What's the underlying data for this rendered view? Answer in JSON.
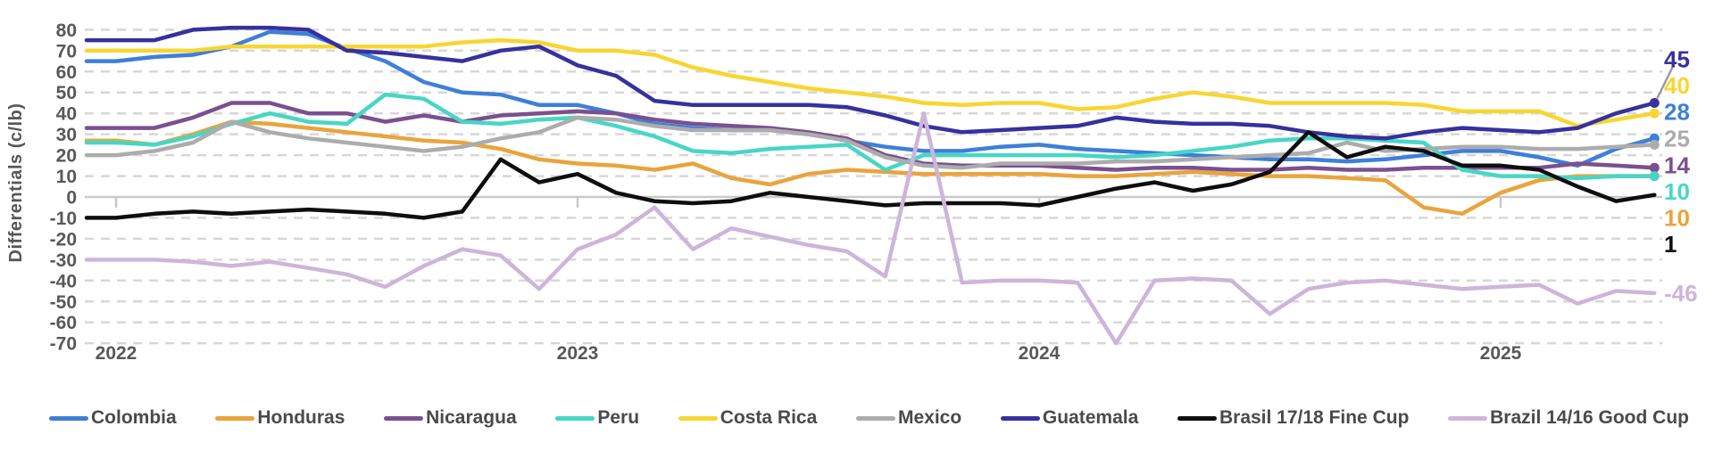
{
  "chart_data": {
    "type": "line",
    "title": "",
    "ylabel": "Differentials (c/lb)",
    "y_ticks": [
      80,
      70,
      60,
      50,
      40,
      30,
      20,
      10,
      0,
      -10,
      -20,
      -30,
      -40,
      -50,
      -60,
      -70
    ],
    "ylim": [
      -75,
      85
    ],
    "x_tick_labels": [
      "2022",
      "2023",
      "2024",
      "2025"
    ],
    "x_frequency": "monthly",
    "x_start": "2022-01",
    "x_end": "2025-05",
    "grid": "horizontal dashed, solid line at 0",
    "legend_position": "bottom",
    "series": [
      {
        "name": "Colombia",
        "color": "#3E7FD9",
        "end_label": "28",
        "values": [
          65,
          67,
          68,
          72,
          79,
          78,
          71,
          65,
          55,
          50,
          49,
          44,
          44,
          40,
          35,
          33,
          32,
          32,
          30,
          27,
          24,
          22,
          22,
          24,
          25,
          23,
          22,
          21,
          20,
          19,
          18,
          18,
          17,
          18,
          20,
          22,
          22,
          19,
          15,
          23,
          28
        ]
      },
      {
        "name": "Honduras",
        "color": "#E9A43C",
        "end_label": "10",
        "values": [
          27,
          25,
          30,
          36,
          35,
          33,
          31,
          29,
          27,
          26,
          23,
          18,
          16,
          15,
          13,
          16,
          9,
          6,
          11,
          13,
          12,
          11,
          11,
          11,
          11,
          10,
          10,
          11,
          12,
          11,
          10,
          10,
          9,
          8,
          -5,
          -8,
          2,
          8,
          10,
          10,
          10
        ]
      },
      {
        "name": "Nicaragua",
        "color": "#7B4F90",
        "end_label": "14",
        "values": [
          33,
          33,
          38,
          45,
          45,
          40,
          40,
          36,
          39,
          36,
          39,
          40,
          41,
          40,
          37,
          35,
          34,
          33,
          31,
          28,
          20,
          16,
          15,
          15,
          15,
          14,
          13,
          14,
          14,
          13,
          13,
          14,
          13,
          13,
          14,
          14,
          14,
          14,
          16,
          15,
          14
        ]
      },
      {
        "name": "Peru",
        "color": "#47D6C6",
        "end_label": "10",
        "values": [
          26,
          25,
          29,
          35,
          40,
          36,
          35,
          49,
          47,
          36,
          35,
          37,
          38,
          34,
          29,
          22,
          21,
          23,
          24,
          25,
          13,
          20,
          20,
          20,
          20,
          20,
          19,
          20,
          22,
          24,
          27,
          28,
          28,
          27,
          26,
          13,
          10,
          10,
          9,
          10,
          10
        ]
      },
      {
        "name": "Costa Rica",
        "color": "#F8D631",
        "end_label": "40",
        "values": [
          70,
          70,
          70,
          72,
          72,
          72,
          72,
          72,
          72,
          74,
          75,
          74,
          70,
          70,
          68,
          62,
          58,
          55,
          52,
          50,
          48,
          45,
          44,
          45,
          45,
          42,
          43,
          47,
          50,
          48,
          45,
          45,
          45,
          45,
          44,
          41,
          41,
          41,
          34,
          37,
          40
        ]
      },
      {
        "name": "Mexico",
        "color": "#ACACAC",
        "end_label": "25",
        "values": [
          20,
          22,
          26,
          36,
          31,
          28,
          26,
          24,
          22,
          24,
          28,
          31,
          38,
          37,
          34,
          32,
          32,
          32,
          30,
          27,
          19,
          15,
          14,
          16,
          16,
          16,
          17,
          17,
          18,
          19,
          20,
          21,
          26,
          22,
          23,
          24,
          24,
          23,
          23,
          24,
          25
        ]
      },
      {
        "name": "Guatemala",
        "color": "#37309E",
        "end_label": "45",
        "values": [
          75,
          75,
          80,
          81,
          81,
          80,
          70,
          69,
          67,
          65,
          70,
          72,
          63,
          58,
          46,
          44,
          44,
          44,
          44,
          43,
          39,
          34,
          31,
          32,
          33,
          34,
          38,
          36,
          35,
          35,
          34,
          31,
          29,
          28,
          31,
          33,
          32,
          31,
          33,
          40,
          45
        ]
      },
      {
        "name": "Brasil 17/18 Fine Cup",
        "color": "#0E0E0E",
        "end_label": "1",
        "values": [
          -10,
          -8,
          -7,
          -8,
          -7,
          -6,
          -7,
          -8,
          -10,
          -7,
          18,
          7,
          11,
          2,
          -2,
          -3,
          -2,
          2,
          0,
          -2,
          -4,
          -3,
          -3,
          -3,
          -4,
          0,
          4,
          7,
          3,
          6,
          12,
          31,
          19,
          24,
          22,
          15,
          15,
          13,
          5,
          -2,
          1
        ]
      },
      {
        "name": "Brazil 14/16 Good Cup",
        "color": "#CDB5DA",
        "end_label": "-46",
        "values": [
          -30,
          -30,
          -31,
          -33,
          -31,
          -34,
          -37,
          -43,
          -33,
          -25,
          -28,
          -44,
          -25,
          -18,
          -5,
          -25,
          -15,
          -19,
          -23,
          -26,
          -38,
          40,
          -41,
          -40,
          -40,
          -41,
          -70,
          -40,
          -39,
          -40,
          -56,
          -44,
          -41,
          -40,
          -42,
          -44,
          -43,
          -42,
          -51,
          -45,
          -46
        ]
      }
    ]
  }
}
